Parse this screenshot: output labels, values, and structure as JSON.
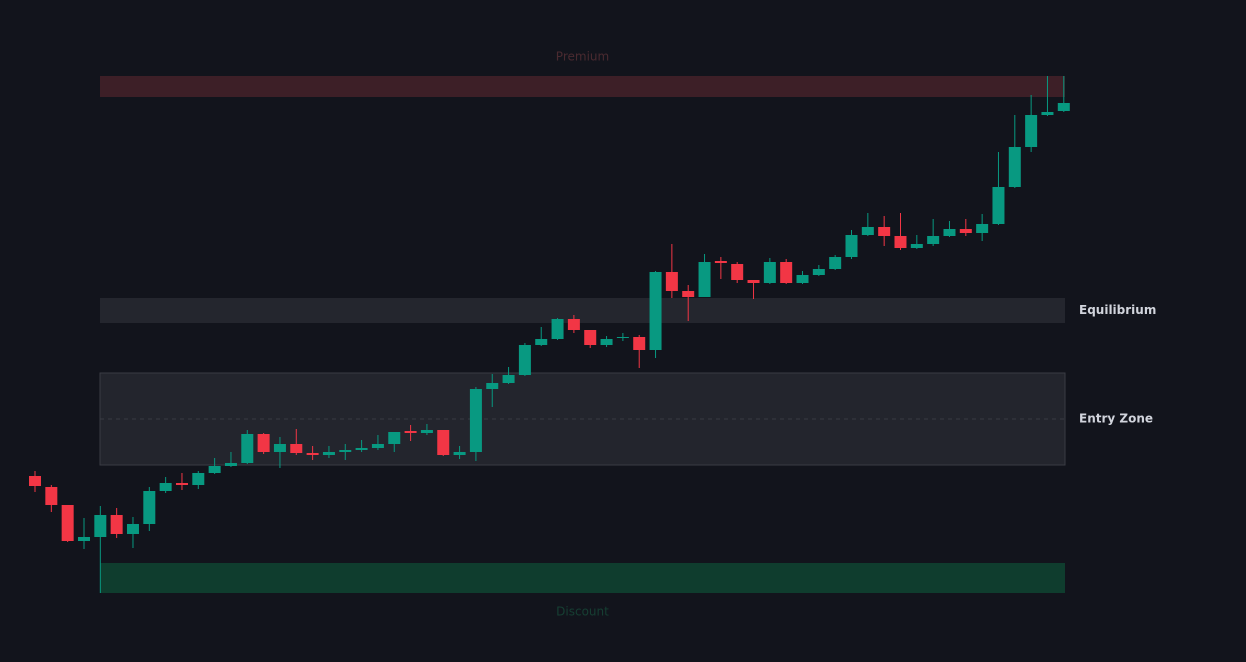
{
  "chart_data": {
    "type": "candlestick",
    "up_color": "#089981",
    "down_color": "#f23645",
    "ylim": [
      0,
      662
    ],
    "open": [
      186,
      175,
      157,
      121,
      125,
      147,
      128,
      138,
      171,
      179,
      177,
      189,
      196,
      199,
      228,
      210,
      218,
      209,
      207,
      210,
      212,
      214,
      218,
      231,
      229,
      232,
      207,
      210,
      273,
      279,
      287,
      317,
      323,
      343,
      332,
      317,
      324,
      325,
      312,
      390,
      371,
      365,
      401,
      398,
      382,
      379,
      400,
      379,
      387,
      393,
      405,
      427,
      435,
      426,
      414,
      418,
      426,
      433,
      429,
      438,
      475,
      515,
      547,
      551
    ],
    "high": [
      191,
      177,
      157,
      144,
      156,
      154,
      145,
      175,
      185,
      189,
      191,
      204,
      210,
      232,
      229,
      225,
      233,
      216,
      216,
      218,
      222,
      227,
      230,
      237,
      238,
      232,
      216,
      275,
      288,
      295,
      319,
      335,
      344,
      347,
      332,
      326,
      329,
      327,
      391,
      418,
      377,
      408,
      405,
      400,
      382,
      404,
      403,
      391,
      397,
      407,
      432,
      449,
      446,
      449,
      427,
      443,
      441,
      443,
      448,
      510,
      547,
      567,
      586,
      586
    ],
    "low": [
      170,
      150,
      120,
      113,
      69,
      124,
      114,
      131,
      169,
      172,
      173,
      188,
      195,
      198,
      208,
      194,
      207,
      202,
      204,
      202,
      210,
      212,
      210,
      221,
      227,
      206,
      203,
      201,
      255,
      278,
      286,
      316,
      322,
      329,
      314,
      315,
      321,
      294,
      304,
      364,
      341,
      365,
      383,
      379,
      363,
      378,
      378,
      378,
      386,
      392,
      403,
      426,
      416,
      412,
      413,
      416,
      425,
      426,
      421,
      437,
      474,
      510,
      546,
      550
    ],
    "close": [
      176,
      157,
      121,
      125,
      147,
      128,
      138,
      171,
      179,
      177,
      189,
      196,
      199,
      228,
      210,
      218,
      209,
      207,
      210,
      212,
      214,
      218,
      230,
      229,
      232,
      207,
      210,
      273,
      279,
      287,
      317,
      323,
      343,
      332,
      317,
      323,
      325,
      312,
      390,
      371,
      365,
      400,
      399,
      382,
      379,
      400,
      379,
      387,
      393,
      405,
      427,
      435,
      426,
      414,
      418,
      426,
      433,
      429,
      438,
      475,
      515,
      547,
      550,
      559
    ],
    "zones": [
      {
        "label": "Premium",
        "top": 586,
        "bottom": 565,
        "color": "#3d1f27",
        "label_position": "above",
        "label_color": "#4a2a30"
      },
      {
        "label": "Equilibrium",
        "top": 364,
        "bottom": 339,
        "color": "#24262e",
        "label_position": "right",
        "label_color": "#d1d4dc"
      },
      {
        "label": "Entry Zone",
        "top": 289,
        "bottom": 197,
        "mid": 243,
        "color": "#23252d",
        "label_position": "right",
        "label_color": "#d1d4dc"
      },
      {
        "label": "Discount",
        "top": 99,
        "bottom": 69,
        "color": "#0f3d2e",
        "label_position": "below",
        "label_color": "#163f33"
      }
    ]
  }
}
